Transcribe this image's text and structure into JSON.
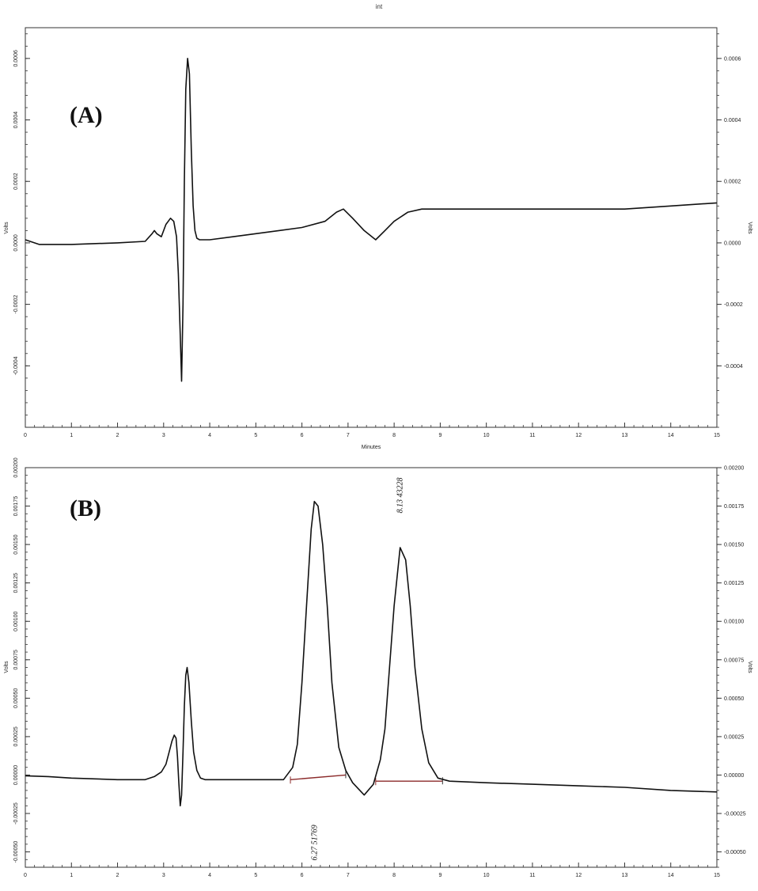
{
  "header": {
    "title": "int"
  },
  "chart_data": [
    {
      "type": "line",
      "panel_label": "(A)",
      "xlabel": "Minutes",
      "ylabel": "Volts",
      "xlim": [
        0,
        15
      ],
      "ylim": [
        -0.0006,
        0.0007
      ],
      "x_ticks": [
        0,
        1,
        2,
        3,
        4,
        5,
        6,
        7,
        8,
        9,
        10,
        11,
        12,
        13,
        14,
        15
      ],
      "y_ticks": [
        -0.0004,
        -0.0002,
        0.0,
        0.0002,
        0.0004,
        0.0006
      ],
      "y_tick_labels": [
        "-0.0004",
        "-0.0002",
        "0.0000",
        "0.0002",
        "0.0004",
        "0.0006"
      ],
      "grid": false,
      "series": [
        {
          "color": "#111111",
          "x": [
            0.0,
            0.3,
            1.0,
            2.0,
            2.6,
            2.75,
            2.8,
            2.85,
            2.95,
            3.05,
            3.15,
            3.22,
            3.28,
            3.32,
            3.36,
            3.39,
            3.42,
            3.45,
            3.48,
            3.52,
            3.56,
            3.6,
            3.64,
            3.68,
            3.72,
            3.78,
            3.85,
            4.0,
            4.5,
            5.0,
            5.5,
            6.0,
            6.5,
            6.75,
            6.9,
            7.1,
            7.35,
            7.6,
            7.8,
            8.0,
            8.3,
            8.6,
            9.0,
            10.0,
            11.0,
            12.0,
            13.0,
            14.0,
            15.0
          ],
          "y": [
            1e-05,
            -5e-06,
            -5e-06,
            0.0,
            5e-06,
            3e-05,
            4e-05,
            3e-05,
            2e-05,
            6e-05,
            8e-05,
            7e-05,
            2e-05,
            -0.0001,
            -0.0003,
            -0.00045,
            -0.0002,
            0.0002,
            0.0005,
            0.0006,
            0.00055,
            0.0003,
            0.00012,
            4e-05,
            1.5e-05,
            1e-05,
            1e-05,
            1e-05,
            2e-05,
            3e-05,
            4e-05,
            5e-05,
            7e-05,
            0.0001,
            0.00011,
            8e-05,
            4e-05,
            1e-05,
            4e-05,
            7e-05,
            0.0001,
            0.00011,
            0.00011,
            0.00011,
            0.00011,
            0.00011,
            0.00011,
            0.00012,
            0.00013
          ]
        }
      ]
    },
    {
      "type": "line",
      "panel_label": "(B)",
      "xlabel": "",
      "ylabel": "Volts",
      "xlim": [
        0,
        15
      ],
      "ylim": [
        -0.0006,
        0.002
      ],
      "x_ticks": [
        0,
        1,
        2,
        3,
        4,
        5,
        6,
        7,
        8,
        9,
        10,
        11,
        12,
        13,
        14,
        15
      ],
      "y_ticks": [
        -0.0005,
        -0.00025,
        0.0,
        0.00025,
        0.0005,
        0.00075,
        0.001,
        0.00125,
        0.0015,
        0.00175,
        0.002
      ],
      "y_tick_labels": [
        "-0.00050",
        "-0.00025",
        "0.00000",
        "0.00025",
        "0.00050",
        "0.00075",
        "0.00100",
        "0.00125",
        "0.00150",
        "0.00175",
        "0.00200"
      ],
      "grid": false,
      "series": [
        {
          "color": "#111111",
          "x": [
            0.0,
            0.5,
            1.0,
            2.0,
            2.6,
            2.8,
            2.95,
            3.05,
            3.12,
            3.18,
            3.23,
            3.27,
            3.3,
            3.33,
            3.36,
            3.39,
            3.42,
            3.45,
            3.48,
            3.51,
            3.55,
            3.6,
            3.65,
            3.72,
            3.8,
            3.9,
            4.0,
            5.0,
            5.6,
            5.8,
            5.9,
            6.0,
            6.1,
            6.2,
            6.27,
            6.35,
            6.45,
            6.55,
            6.65,
            6.8,
            6.95,
            7.1,
            7.35,
            7.55,
            7.7,
            7.8,
            7.9,
            8.0,
            8.13,
            8.25,
            8.35,
            8.45,
            8.6,
            8.75,
            8.95,
            9.2,
            10.0,
            11.0,
            12.0,
            13.0,
            14.0,
            15.0
          ],
          "y": [
            -5e-06,
            -1e-05,
            -2e-05,
            -3e-05,
            -3e-05,
            -1e-05,
            2e-05,
            7e-05,
            0.00015,
            0.00022,
            0.00026,
            0.00024,
            0.00012,
            -5e-05,
            -0.0002,
            -0.00013,
            0.00015,
            0.00045,
            0.00065,
            0.0007,
            0.0006,
            0.00035,
            0.00015,
            3e-05,
            -2e-05,
            -3e-05,
            -3e-05,
            -3e-05,
            -3e-05,
            5e-05,
            0.0002,
            0.0006,
            0.0011,
            0.0016,
            0.00178,
            0.00175,
            0.0015,
            0.0011,
            0.0006,
            0.00018,
            3e-05,
            -5e-05,
            -0.00013,
            -6e-05,
            0.0001,
            0.0003,
            0.0007,
            0.0011,
            0.00148,
            0.0014,
            0.0011,
            0.0007,
            0.0003,
            8e-05,
            -2e-05,
            -4e-05,
            -5e-05,
            -6e-05,
            -7e-05,
            -8e-05,
            -0.0001,
            -0.00011
          ]
        }
      ],
      "baselines": [
        {
          "x": [
            5.75,
            6.95
          ],
          "y": [
            -3e-05,
            0.0
          ]
        },
        {
          "x": [
            7.6,
            9.05
          ],
          "y": [
            -4e-05,
            -4e-05
          ]
        }
      ],
      "baseline_color": "#8b2a2a",
      "annotations": [
        {
          "text": "6.27 51769",
          "x": 6.27,
          "y": -0.00044
        },
        {
          "text": "8.13 43228",
          "x": 8.13,
          "y": 0.00182
        }
      ]
    }
  ]
}
